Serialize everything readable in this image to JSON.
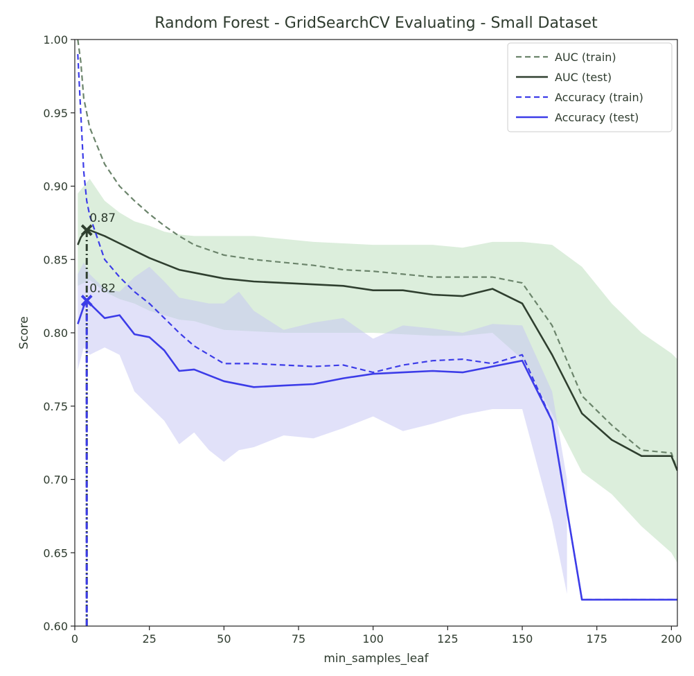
{
  "chart_data": {
    "type": "line",
    "title": "Random Forest - GridSearchCV Evaluating - Small Dataset",
    "xlabel": "min_samples_leaf",
    "ylabel": "Score",
    "xlim": [
      0,
      202
    ],
    "ylim": [
      0.6,
      1.0
    ],
    "xticks": [
      0,
      25,
      50,
      75,
      100,
      125,
      150,
      175,
      200
    ],
    "yticks": [
      0.6,
      0.65,
      0.7,
      0.75,
      0.8,
      0.85,
      0.9,
      0.95,
      1.0
    ],
    "ytick_labels": [
      "0.60",
      "0.65",
      "0.70",
      "0.75",
      "0.80",
      "0.85",
      "0.90",
      "0.95",
      "1.00"
    ],
    "grid": false,
    "legend_position": "top-right",
    "colors": {
      "auc": "#566b56",
      "auc_test": "#2f3f2f",
      "accuracy": "#3c3ce8",
      "auc_band": "#b9ddb9",
      "acc_band": "#c4c4f4"
    },
    "series": [
      {
        "name": "AUC (train)",
        "style": "dashed",
        "color": "#6b846b",
        "x": [
          1,
          2,
          3,
          5,
          10,
          15,
          20,
          25,
          30,
          35,
          40,
          50,
          60,
          70,
          80,
          90,
          100,
          110,
          120,
          130,
          140,
          150,
          160,
          170,
          180,
          190,
          200,
          202
        ],
        "y": [
          1.0,
          0.985,
          0.96,
          0.94,
          0.915,
          0.9,
          0.89,
          0.881,
          0.873,
          0.866,
          0.86,
          0.853,
          0.85,
          0.848,
          0.846,
          0.843,
          0.842,
          0.84,
          0.838,
          0.838,
          0.838,
          0.834,
          0.805,
          0.757,
          0.737,
          0.72,
          0.718,
          0.706
        ]
      },
      {
        "name": "AUC (test)",
        "style": "solid",
        "color": "#2f3f2f",
        "x": [
          1,
          2,
          3,
          4,
          5,
          10,
          15,
          20,
          25,
          30,
          35,
          40,
          50,
          60,
          70,
          80,
          90,
          100,
          110,
          120,
          130,
          140,
          150,
          160,
          170,
          180,
          190,
          200,
          202
        ],
        "y": [
          0.86,
          0.865,
          0.868,
          0.87,
          0.87,
          0.866,
          0.861,
          0.856,
          0.851,
          0.847,
          0.843,
          0.841,
          0.837,
          0.835,
          0.834,
          0.833,
          0.832,
          0.829,
          0.829,
          0.826,
          0.825,
          0.83,
          0.82,
          0.785,
          0.745,
          0.727,
          0.716,
          0.716,
          0.706
        ]
      },
      {
        "name": "Accuracy (train)",
        "style": "dashed",
        "color": "#3c3ce8",
        "x": [
          1,
          2,
          3,
          4,
          5,
          10,
          15,
          20,
          25,
          30,
          35,
          40,
          45,
          50,
          60,
          70,
          80,
          90,
          100,
          110,
          120,
          130,
          140,
          150,
          160,
          170,
          200,
          202
        ],
        "y": [
          0.99,
          0.95,
          0.91,
          0.89,
          0.88,
          0.85,
          0.838,
          0.828,
          0.82,
          0.81,
          0.8,
          0.791,
          0.785,
          0.779,
          0.779,
          0.778,
          0.777,
          0.778,
          0.773,
          0.778,
          0.781,
          0.782,
          0.779,
          0.785,
          0.74,
          0.618,
          0.618,
          0.618
        ]
      },
      {
        "name": "Accuracy (test)",
        "style": "solid",
        "color": "#3c3ce8",
        "x": [
          1,
          2,
          3,
          4,
          5,
          10,
          15,
          20,
          25,
          30,
          35,
          40,
          50,
          60,
          70,
          80,
          90,
          100,
          110,
          120,
          130,
          140,
          150,
          160,
          170,
          200,
          202
        ],
        "y": [
          0.806,
          0.812,
          0.818,
          0.822,
          0.82,
          0.81,
          0.812,
          0.799,
          0.797,
          0.788,
          0.774,
          0.775,
          0.767,
          0.763,
          0.764,
          0.765,
          0.769,
          0.772,
          0.773,
          0.774,
          0.773,
          0.777,
          0.781,
          0.74,
          0.618,
          0.618,
          0.618
        ]
      }
    ],
    "bands": [
      {
        "series": "AUC (test)",
        "color": "#b9ddb9",
        "x": [
          1,
          5,
          10,
          15,
          20,
          25,
          30,
          35,
          40,
          50,
          60,
          70,
          80,
          90,
          100,
          110,
          120,
          130,
          140,
          150,
          160,
          170,
          180,
          190,
          200,
          202
        ],
        "upper": [
          0.895,
          0.905,
          0.89,
          0.882,
          0.876,
          0.873,
          0.869,
          0.867,
          0.866,
          0.866,
          0.866,
          0.864,
          0.862,
          0.861,
          0.86,
          0.86,
          0.86,
          0.858,
          0.862,
          0.862,
          0.86,
          0.845,
          0.82,
          0.8,
          0.786,
          0.782
        ],
        "lower": [
          0.832,
          0.836,
          0.828,
          0.823,
          0.82,
          0.815,
          0.812,
          0.809,
          0.808,
          0.802,
          0.801,
          0.8,
          0.8,
          0.8,
          0.8,
          0.799,
          0.798,
          0.798,
          0.8,
          0.782,
          0.745,
          0.705,
          0.69,
          0.668,
          0.65,
          0.643
        ]
      },
      {
        "series": "Accuracy (test)",
        "color": "#c4c4f4",
        "x": [
          1,
          3,
          5,
          10,
          15,
          20,
          25,
          30,
          35,
          40,
          45,
          50,
          55,
          60,
          70,
          80,
          90,
          100,
          110,
          120,
          130,
          140,
          150,
          160,
          165
        ],
        "upper": [
          0.84,
          0.848,
          0.84,
          0.83,
          0.828,
          0.838,
          0.845,
          0.835,
          0.824,
          0.822,
          0.82,
          0.82,
          0.828,
          0.815,
          0.802,
          0.807,
          0.81,
          0.796,
          0.805,
          0.803,
          0.8,
          0.806,
          0.805,
          0.76,
          0.7
        ],
        "lower": [
          0.775,
          0.79,
          0.785,
          0.79,
          0.785,
          0.76,
          0.75,
          0.74,
          0.724,
          0.732,
          0.72,
          0.712,
          0.72,
          0.722,
          0.73,
          0.728,
          0.735,
          0.743,
          0.733,
          0.738,
          0.744,
          0.748,
          0.748,
          0.672,
          0.622
        ]
      }
    ],
    "annotations": [
      {
        "text": "0.87",
        "x": 4,
        "y": 0.87,
        "color": "#2f3f2f"
      },
      {
        "text": "0.82",
        "x": 4,
        "y": 0.822,
        "color": "#3c3ce8"
      }
    ]
  }
}
